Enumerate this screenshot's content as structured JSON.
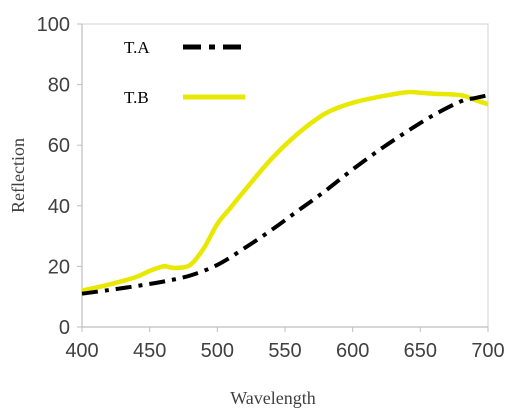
{
  "chart_data": {
    "type": "line",
    "title": "",
    "xlabel": "Wavelength",
    "ylabel": "Reflection",
    "xlim": [
      400,
      700
    ],
    "ylim": [
      0,
      100
    ],
    "xticks": [
      400,
      450,
      500,
      550,
      600,
      650,
      700
    ],
    "yticks": [
      0,
      20,
      40,
      60,
      80,
      100
    ],
    "grid": false,
    "legend_position": "top-left",
    "series": [
      {
        "name": "T.A",
        "color": "#000000",
        "style": "dash-dot",
        "x": [
          400,
          420,
          440,
          460,
          480,
          500,
          520,
          540,
          560,
          580,
          600,
          620,
          640,
          660,
          680,
          690,
          700
        ],
        "y": [
          11,
          12.2,
          13.5,
          15,
          17,
          20.5,
          26,
          32,
          38.5,
          45,
          52,
          58.5,
          64.5,
          70,
          74.5,
          75.5,
          76.5
        ]
      },
      {
        "name": "T.B",
        "color": "#e8e800",
        "style": "solid",
        "x": [
          400,
          420,
          440,
          450,
          460,
          465,
          470,
          480,
          490,
          500,
          510,
          520,
          540,
          560,
          580,
          600,
          620,
          640,
          650,
          660,
          680,
          690,
          700
        ],
        "y": [
          12,
          14,
          16.5,
          18.5,
          20,
          19.7,
          19.5,
          20.5,
          26,
          34,
          39.5,
          45,
          55.5,
          64,
          70.5,
          74,
          76,
          77.5,
          77.3,
          77,
          76.5,
          75,
          73.5
        ]
      }
    ]
  }
}
